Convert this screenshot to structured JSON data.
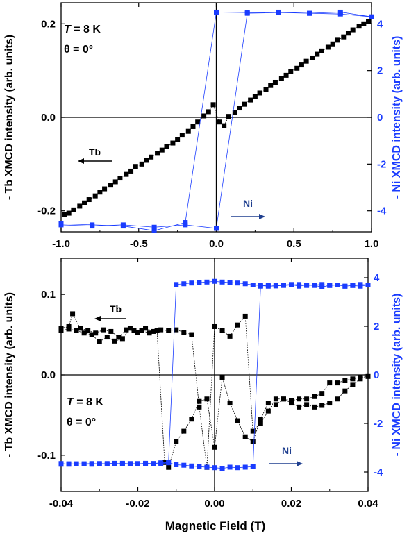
{
  "xlabel": "Magnetic Field (T)",
  "colors": {
    "tb": "#000000",
    "ni": "#1a3cff",
    "arrow_ni": "#1f3f8f"
  },
  "chart_data": [
    {
      "type": "scatter",
      "panel": "top",
      "annotation_T": {
        "symbol": "T",
        "rest": " = 8 K"
      },
      "annotation_theta": "θ = 0°",
      "ylabel_left": "- Tb XMCD intensity (arb. units)",
      "ylabel_right": "- Ni XMCD intensity (arb. units)",
      "xlim": [
        -1.0,
        1.0
      ],
      "ylim_left": [
        -0.245,
        0.245
      ],
      "ylim_right": [
        -4.9,
        4.9
      ],
      "xticks": [
        -1.0,
        -0.5,
        0.0,
        0.5,
        1.0
      ],
      "xtick_labels": [
        "-1.0",
        "-0.5",
        "0.0",
        "0.5",
        "1.0"
      ],
      "yticks_left": [
        -0.2,
        0.0,
        0.2
      ],
      "ytick_labels_left": [
        "-0.2",
        "0.0",
        "0.2"
      ],
      "yticks_right": [
        -4,
        -2,
        0,
        2,
        4
      ],
      "ytick_labels_right": [
        "-4",
        "-2",
        "0",
        "2",
        "4"
      ],
      "series": [
        {
          "name": "Tb",
          "axis": "left",
          "x": [
            -0.98,
            -0.95,
            -0.92,
            -0.88,
            -0.85,
            -0.82,
            -0.78,
            -0.75,
            -0.72,
            -0.68,
            -0.65,
            -0.62,
            -0.58,
            -0.55,
            -0.52,
            -0.48,
            -0.45,
            -0.42,
            -0.38,
            -0.35,
            -0.32,
            -0.28,
            -0.25,
            -0.22,
            -0.18,
            -0.15,
            -0.12,
            -0.08,
            -0.05,
            -0.02,
            0.02,
            0.05,
            0.08,
            0.12,
            0.15,
            0.18,
            0.22,
            0.25,
            0.28,
            0.32,
            0.35,
            0.38,
            0.42,
            0.45,
            0.48,
            0.52,
            0.55,
            0.58,
            0.62,
            0.65,
            0.68,
            0.72,
            0.75,
            0.78,
            0.82,
            0.85,
            0.88,
            0.92,
            0.95,
            0.98
          ],
          "y": [
            -0.208,
            -0.205,
            -0.198,
            -0.19,
            -0.183,
            -0.176,
            -0.168,
            -0.16,
            -0.153,
            -0.145,
            -0.138,
            -0.13,
            -0.122,
            -0.115,
            -0.105,
            -0.1,
            -0.092,
            -0.085,
            -0.077,
            -0.07,
            -0.063,
            -0.055,
            -0.047,
            -0.038,
            -0.03,
            -0.02,
            -0.01,
            0.003,
            0.012,
            0.027,
            -0.01,
            -0.018,
            0.002,
            0.01,
            0.02,
            0.028,
            0.037,
            0.045,
            0.052,
            0.06,
            0.068,
            0.075,
            0.083,
            0.09,
            0.098,
            0.105,
            0.112,
            0.12,
            0.127,
            0.135,
            0.142,
            0.15,
            0.157,
            0.165,
            0.172,
            0.18,
            0.187,
            0.195,
            0.2,
            0.205
          ]
        },
        {
          "name": "Ni",
          "axis": "right",
          "x": [
            -1.0,
            -0.8,
            -0.6,
            -0.4,
            -0.2,
            0.0,
            0.2,
            0.4,
            0.6,
            0.8,
            1.0,
            0.8,
            0.6,
            0.4,
            0.2,
            0.0,
            -0.2,
            -0.4,
            -0.6,
            -0.8,
            -1.0
          ],
          "y": [
            -4.6,
            -4.65,
            -4.6,
            -4.7,
            -4.6,
            -4.75,
            4.45,
            4.48,
            4.45,
            4.5,
            4.3,
            4.42,
            4.45,
            4.5,
            4.48,
            4.5,
            -4.5,
            -4.85,
            -4.65,
            -4.6,
            -4.55
          ]
        }
      ],
      "label_tb": "Tb",
      "label_ni": "Ni"
    },
    {
      "type": "scatter",
      "panel": "bottom",
      "annotation_T": {
        "symbol": "T",
        "rest": " = 8 K"
      },
      "annotation_theta": "θ = 0°",
      "ylabel_left": "- Tb XMCD intensity (arb. units)",
      "ylabel_right": "- Ni XMCD intensity (arb. units)",
      "xlim": [
        -0.04,
        0.04
      ],
      "ylim_left": [
        -0.145,
        0.145
      ],
      "ylim_right": [
        -4.8,
        4.8
      ],
      "xticks": [
        -0.04,
        -0.02,
        0.0,
        0.02,
        0.04
      ],
      "xtick_labels": [
        "-0.04",
        "-0.02",
        "0.00",
        "0.02",
        "0.04"
      ],
      "yticks_left": [
        -0.1,
        0.0,
        0.1
      ],
      "ytick_labels_left": [
        "-0.1",
        "0.0",
        "0.1"
      ],
      "yticks_right": [
        -4,
        -2,
        0,
        2,
        4
      ],
      "ytick_labels_right": [
        "-4",
        "-2",
        "0",
        "2",
        "4"
      ],
      "series": [
        {
          "name": "Tb",
          "axis": "left",
          "x": [
            -0.04,
            -0.038,
            -0.037,
            -0.035,
            -0.033,
            -0.031,
            -0.029,
            -0.027,
            -0.025,
            -0.023,
            -0.021,
            -0.019,
            -0.017,
            -0.015,
            -0.013,
            -0.012,
            -0.01,
            -0.008,
            -0.006,
            -0.004,
            -0.002,
            0.0,
            0.002,
            0.004,
            0.006,
            0.008,
            0.01,
            0.012,
            0.014,
            0.016,
            0.018,
            0.02,
            0.022,
            0.024,
            0.026,
            0.028,
            0.03,
            0.032,
            0.034,
            0.036,
            0.038,
            0.04,
            0.038,
            0.036,
            0.034,
            0.032,
            0.03,
            0.028,
            0.026,
            0.024,
            0.022,
            0.02,
            0.018,
            0.016,
            0.014,
            0.012,
            0.01,
            0.008,
            0.006,
            0.004,
            0.002,
            0.0,
            -0.002,
            -0.004,
            -0.006,
            -0.008,
            -0.01,
            -0.012,
            -0.014,
            -0.016,
            -0.018,
            -0.02,
            -0.022,
            -0.024,
            -0.026,
            -0.028,
            -0.03,
            -0.032,
            -0.034,
            -0.036,
            -0.038,
            -0.04
          ],
          "y": [
            0.058,
            0.06,
            0.076,
            0.058,
            0.055,
            0.052,
            0.056,
            0.054,
            0.047,
            0.056,
            0.055,
            0.055,
            0.052,
            0.055,
            -0.109,
            -0.115,
            -0.083,
            -0.07,
            -0.055,
            -0.033,
            -0.03,
            -0.09,
            -0.003,
            -0.035,
            -0.057,
            -0.077,
            -0.083,
            -0.055,
            -0.035,
            -0.037,
            -0.03,
            -0.032,
            -0.03,
            -0.03,
            -0.027,
            -0.023,
            -0.01,
            -0.01,
            -0.007,
            -0.005,
            -0.003,
            -0.002,
            -0.005,
            -0.012,
            -0.02,
            -0.03,
            -0.035,
            -0.038,
            -0.04,
            -0.037,
            -0.04,
            -0.035,
            -0.03,
            -0.03,
            -0.045,
            -0.06,
            -0.07,
            0.073,
            0.062,
            0.048,
            0.055,
            0.06,
            -0.115,
            -0.04,
            0.05,
            0.053,
            0.056,
            0.055,
            0.056,
            0.054,
            0.058,
            0.053,
            0.058,
            0.045,
            0.042,
            0.047,
            0.041,
            0.05,
            0.052,
            0.055,
            0.057,
            0.055
          ]
        },
        {
          "name": "Ni",
          "axis": "right",
          "x": [
            -0.04,
            -0.038,
            -0.036,
            -0.034,
            -0.032,
            -0.03,
            -0.028,
            -0.026,
            -0.024,
            -0.022,
            -0.02,
            -0.018,
            -0.016,
            -0.014,
            -0.012,
            -0.01,
            -0.008,
            -0.006,
            -0.004,
            -0.002,
            0.0,
            0.002,
            0.004,
            0.006,
            0.008,
            0.01,
            0.012,
            0.014,
            0.016,
            0.018,
            0.02,
            0.022,
            0.024,
            0.026,
            0.028,
            0.03,
            0.032,
            0.034,
            0.036,
            0.038,
            0.04,
            0.038,
            0.036,
            0.034,
            0.032,
            0.03,
            0.028,
            0.026,
            0.024,
            0.022,
            0.02,
            0.018,
            0.016,
            0.014,
            0.012,
            0.01,
            0.008,
            0.006,
            0.004,
            0.002,
            0.0,
            -0.002,
            -0.004,
            -0.006,
            -0.008,
            -0.01,
            -0.012,
            -0.014,
            -0.016,
            -0.018,
            -0.02,
            -0.022,
            -0.024,
            -0.026,
            -0.028,
            -0.03,
            -0.032,
            -0.034,
            -0.036,
            -0.038,
            -0.04
          ],
          "y": [
            -3.65,
            -3.68,
            -3.66,
            -3.67,
            -3.68,
            -3.65,
            -3.67,
            -3.66,
            -3.64,
            -3.66,
            -3.65,
            -3.67,
            -3.65,
            -3.66,
            -3.62,
            -3.7,
            -3.72,
            -3.75,
            -3.78,
            -3.8,
            -3.82,
            -3.85,
            -3.8,
            -3.82,
            -3.8,
            -3.78,
            3.65,
            3.7,
            3.68,
            3.7,
            3.72,
            3.65,
            3.7,
            3.68,
            3.62,
            3.68,
            3.7,
            3.65,
            3.68,
            3.65,
            3.7,
            3.72,
            3.68,
            3.65,
            3.7,
            3.68,
            3.72,
            3.7,
            3.68,
            3.72,
            3.7,
            3.68,
            3.66,
            3.65,
            3.68,
            3.7,
            3.75,
            3.78,
            3.8,
            3.82,
            3.85,
            3.82,
            3.8,
            3.78,
            3.75,
            3.72,
            -3.6,
            -3.62,
            -3.65,
            -3.64,
            -3.66,
            -3.65,
            -3.66,
            -3.64,
            -3.65,
            -3.66,
            -3.65,
            -3.66,
            -3.67,
            -3.66,
            -3.68
          ]
        }
      ],
      "label_tb": "Tb",
      "label_ni": "Ni"
    }
  ]
}
